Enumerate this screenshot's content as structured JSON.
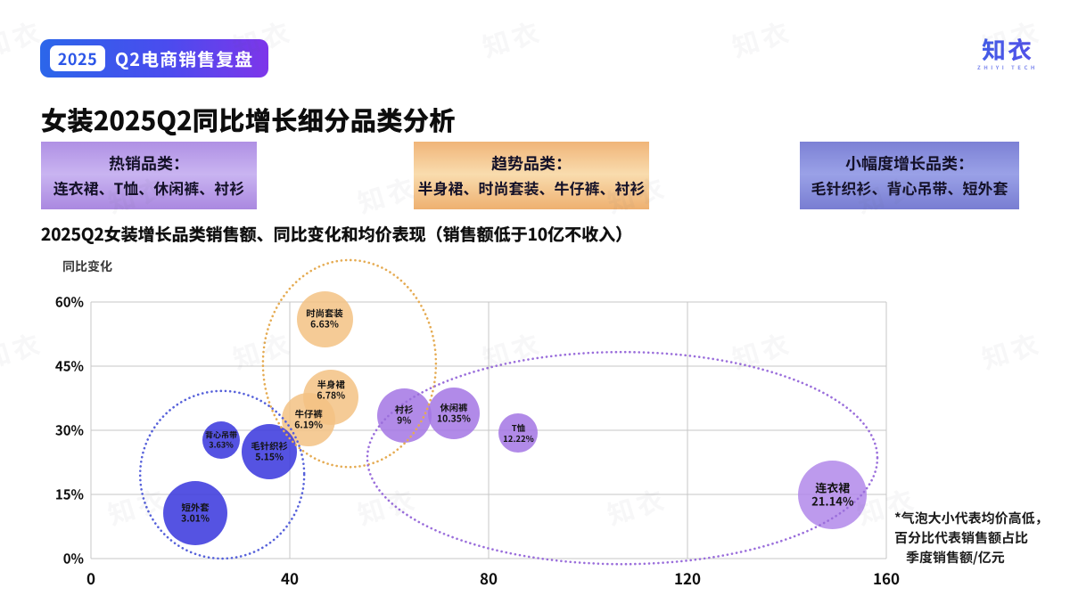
{
  "header": {
    "badge": {
      "year": "2025",
      "label": "Q2电商销售复盘"
    },
    "logo": {
      "text": "知衣",
      "subtext": "ZHIYI TECH"
    },
    "title": "女装2025Q2同比增长细分品类分析"
  },
  "watermark": "知衣",
  "category_boxes": [
    {
      "key": "hot",
      "title": "热销品类：",
      "items": "连衣裙、T恤、休闲裤、衬衫"
    },
    {
      "key": "trend",
      "title": "趋势品类：",
      "items": "半身裙、时尚套装、牛仔裤、衬衫"
    },
    {
      "key": "small",
      "title": "小幅度增长品类：",
      "items": "毛针织衫、背心吊带、短外套"
    }
  ],
  "chart_data": {
    "type": "scatter",
    "title": "2025Q2女装增长品类销售额、同比变化和均价表现（销售额低于10亿不收入）",
    "ylabel": "同比变化",
    "xlabel": "季度销售额/亿元",
    "xlim": [
      0,
      160
    ],
    "ylim": [
      0,
      60
    ],
    "grid": true,
    "x_ticks": [
      {
        "value": 0,
        "label": "0"
      },
      {
        "value": 40,
        "label": "40"
      },
      {
        "value": 80,
        "label": "80"
      },
      {
        "value": 120,
        "label": "120"
      },
      {
        "value": 160,
        "label": "160"
      }
    ],
    "y_ticks": [
      {
        "value": 0,
        "label": "0%"
      },
      {
        "value": 15,
        "label": "15%"
      },
      {
        "value": 30,
        "label": "30%"
      },
      {
        "value": 45,
        "label": "45%"
      },
      {
        "value": 60,
        "label": "60%"
      }
    ],
    "series": [
      {
        "name": "趋势品类",
        "color": "rgba(243,194,132,0.85)",
        "points": [
          {
            "key": "fashion-set",
            "label": "时尚套装",
            "share": "6.63%",
            "x": 47.0,
            "y": 56.0,
            "r": 31.5
          },
          {
            "key": "skirt",
            "label": "半身裙",
            "share": "6.78%",
            "x": 48.3,
            "y": 37.7,
            "r": 31,
            "label_dy": -8
          },
          {
            "key": "jeans",
            "label": "牛仔裤",
            "share": "6.19%",
            "x": 43.8,
            "y": 32.5,
            "r": 30
          }
        ]
      },
      {
        "name": "热销品类",
        "color": "rgba(163,118,228,0.85)",
        "points": [
          {
            "key": "shirt",
            "label": "衬衫",
            "share": "9%",
            "x": 63.0,
            "y": 33.5,
            "r": 30.5
          },
          {
            "key": "casual-pants",
            "label": "休闲裤",
            "share": "10.35%",
            "x": 73.0,
            "y": 34.0,
            "r": 29
          },
          {
            "key": "tshirt",
            "label": "T恤",
            "share": "12.22%",
            "x": 86.0,
            "y": 29.3,
            "r": 22
          },
          {
            "key": "dress",
            "label": "连衣裙",
            "share": "21.14%",
            "x": 149.2,
            "y": 15.0,
            "r": 38.5,
            "color": "rgba(177,136,234,0.85)"
          }
        ]
      },
      {
        "name": "小幅度增长品类",
        "color": "rgba(62,59,222,0.88)",
        "points": [
          {
            "key": "camisole",
            "label": "背心吊带",
            "share": "3.63%",
            "x": 26.2,
            "y": 27.7,
            "r": 21
          },
          {
            "key": "knit-sweater",
            "label": "毛针织衫",
            "share": "5.15%",
            "x": 35.9,
            "y": 25.0,
            "r": 31
          },
          {
            "key": "short-coat",
            "label": "短外套",
            "share": "3.01%",
            "x": 21.0,
            "y": 10.6,
            "r": 36
          }
        ]
      }
    ],
    "group_ellipses": [
      {
        "name": "趋势品类圈",
        "cx": 52.0,
        "cy": 45.6,
        "rx": 17.4,
        "ry": 24.2,
        "color": "#e5ab52"
      },
      {
        "name": "小幅度增长品类圈",
        "cx": 26.4,
        "cy": 19.6,
        "rx": 16.5,
        "ry": 19.6,
        "color": "#5661da"
      },
      {
        "name": "热销品类圈",
        "cx": 106.9,
        "cy": 23.5,
        "rx": 51.3,
        "ry": 24.8,
        "color": "#9a6edb"
      }
    ],
    "note_lines": [
      "*气泡大小代表均价高低，",
      "百分比代表销售额占比",
      "季度销售额/亿元"
    ]
  }
}
